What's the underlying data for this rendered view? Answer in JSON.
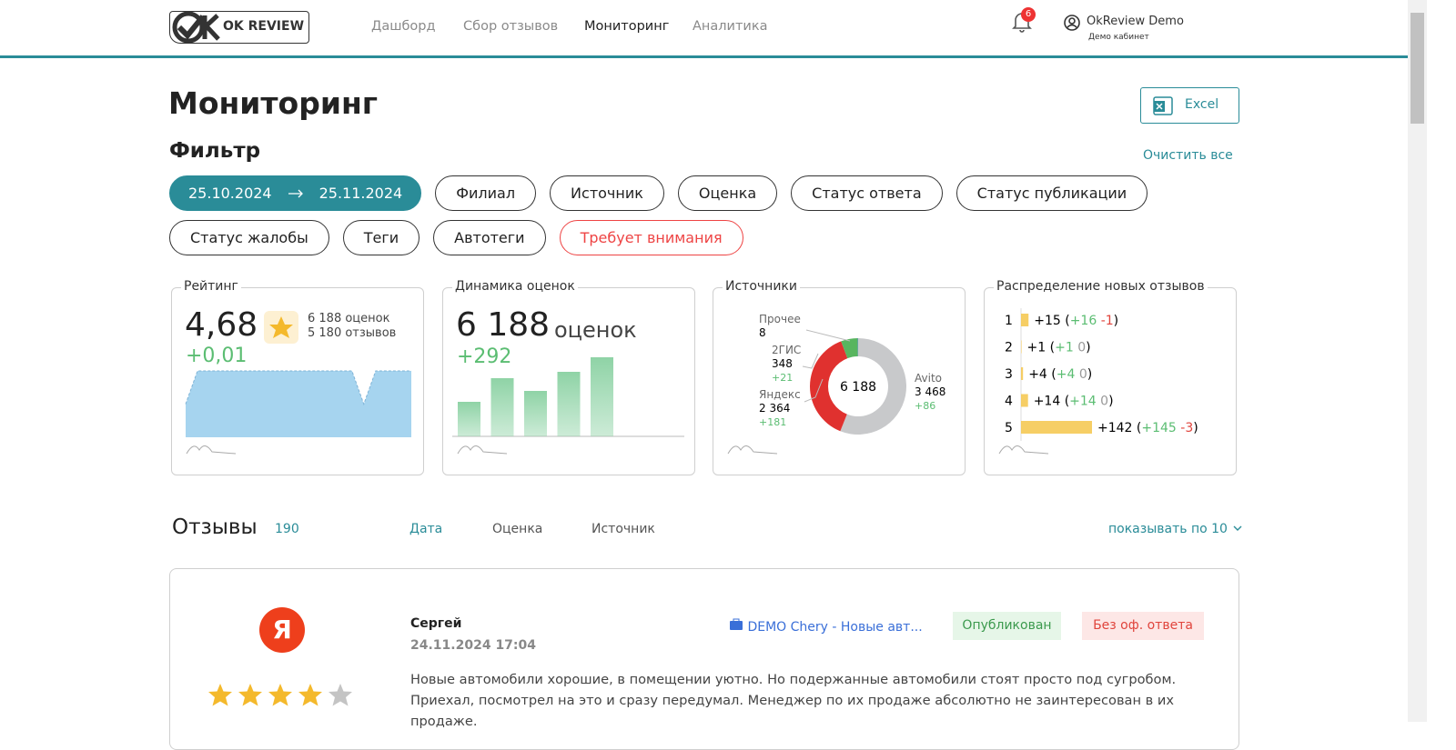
{
  "header": {
    "logo": "OK REVIEW",
    "nav": [
      "Дашборд",
      "Сбор отзывов",
      "Мониторинг",
      "Аналитика"
    ],
    "active_nav": 2,
    "notifications": "6",
    "user": "OkReview Demo",
    "user_sub": "Демо кабинет"
  },
  "page": {
    "title": "Мониторинг",
    "excel": "Excel",
    "filter_title": "Фильтр",
    "clear": "Очистить все",
    "date_from": "25.10.2024",
    "date_to": "25.11.2024",
    "filters": [
      "Филиал",
      "Источник",
      "Оценка",
      "Статус ответа",
      "Статус публикации",
      "Статус жалобы",
      "Теги",
      "Автотеги"
    ],
    "attention": "Требует внимания"
  },
  "rating": {
    "title": "Рейтинг",
    "value": "4,68",
    "ratings": "6 188 оценок",
    "reviews": "5 180 отзывов",
    "delta": "+0,01",
    "chart": {
      "type": "area",
      "color": "#a6d4ef",
      "ylim": [
        4.5,
        4.7
      ],
      "values": [
        4.6,
        4.7,
        4.7,
        4.7,
        4.7,
        4.7,
        4.7,
        4.7,
        4.7,
        4.7,
        4.7,
        4.7,
        4.7,
        4.7,
        4.7,
        4.6,
        4.7,
        4.7,
        4.7,
        4.7
      ]
    }
  },
  "dynamics": {
    "title": "Динамика оценок",
    "value": "6 188",
    "unit": "оценок",
    "delta": "+292",
    "chart": {
      "type": "bar",
      "color": "#8fd3a6",
      "ylim": [
        0,
        100
      ],
      "values": [
        38,
        64,
        50,
        71,
        87
      ]
    }
  },
  "sources": {
    "title": "Источники",
    "total": "6 188",
    "items": [
      {
        "name": "Avito",
        "value": 3468,
        "label": "3 468",
        "delta": "+86",
        "color": "#c8c9cb"
      },
      {
        "name": "Яндекс",
        "value": 2364,
        "label": "2 364",
        "delta": "+181",
        "color": "#e0312f"
      },
      {
        "name": "2ГИС",
        "value": 348,
        "label": "348",
        "delta": "+21",
        "color": "#58b55f"
      },
      {
        "name": "Прочее",
        "value": 8,
        "label": "8",
        "color": "#4a7fd6"
      }
    ]
  },
  "distribution": {
    "title": "Распределение новых отзывов",
    "brackets": [
      "(",
      ")"
    ],
    "color": "#f4c54a",
    "items": [
      {
        "rank": "1",
        "value": 15,
        "label": "+15",
        "plus": "+16",
        "minus": "-1"
      },
      {
        "rank": "2",
        "value": 1,
        "label": "+1",
        "plus": "+1",
        "minus": "0"
      },
      {
        "rank": "3",
        "value": 4,
        "label": "+4",
        "plus": "+4",
        "minus": "0"
      },
      {
        "rank": "4",
        "value": 14,
        "label": "+14",
        "plus": "+14",
        "minus": "0"
      },
      {
        "rank": "5",
        "value": 142,
        "label": "+142",
        "plus": "+145",
        "minus": "-3"
      }
    ]
  },
  "reviews": {
    "title": "Отзывы",
    "count": "190",
    "sort": [
      "Дата",
      "Оценка",
      "Источник"
    ],
    "page_size": "показывать по 10",
    "items": [
      {
        "source_icon": "Я",
        "author": "Сергей",
        "date": "24.11.2024 17:04",
        "branch": "DEMO Chery - Новые авт...",
        "status": "Опубликован",
        "answer": "Без оф. ответа",
        "rating": 4,
        "max_rating": 5,
        "text": "Новые автомобили хорошие, в помещении уютно. Но подержанные автомобили стоят просто под сугробом. Приехал, посмотрел на это и сразу передумал. Менеджер по их продаже абсолютно не заинтересован в их продаже."
      }
    ]
  }
}
